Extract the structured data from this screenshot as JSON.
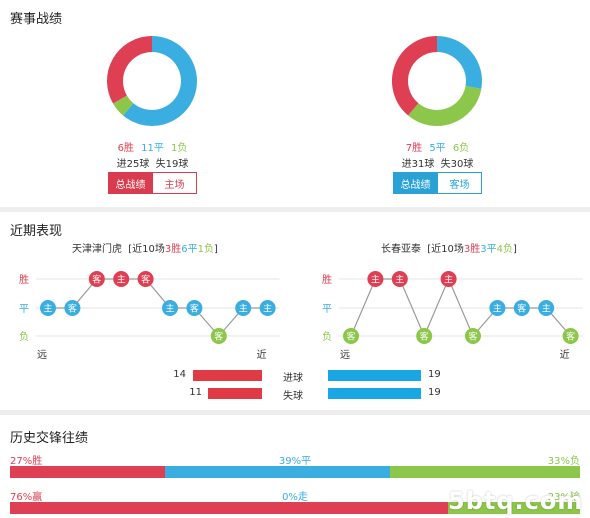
{
  "colors": {
    "win": "#de3f52",
    "draw": "#3aaee0",
    "loss": "#8cc64a",
    "bar_red": "#e03a44",
    "bar_blue": "#1aa6e4"
  },
  "record": {
    "title": "赛事战绩",
    "home": {
      "w": "6胜",
      "d": "11平",
      "l": "1负",
      "goals_for": "进25球",
      "goals_against": "失19球",
      "tab_active": "总战绩",
      "tab_inactive": "主场",
      "donut": {
        "win": 6,
        "draw": 11,
        "loss": 1
      }
    },
    "away": {
      "w": "7胜",
      "d": "5平",
      "l": "6负",
      "goals_for": "进31球",
      "goals_against": "失30球",
      "tab_active": "总战绩",
      "tab_inactive": "客场",
      "donut": {
        "win": 7,
        "draw": 5,
        "loss": 6
      }
    }
  },
  "recent": {
    "title": "近期表现",
    "row_labels": {
      "win": "胜",
      "draw": "平",
      "loss": "负"
    },
    "far": "远",
    "near": "近",
    "home": {
      "name": "天津津门虎",
      "summary_pre": "[近10场",
      "w": "3胜",
      "d": "6平",
      "l": "1负",
      "summary_post": "]",
      "games": [
        {
          "r": "D",
          "v": "主"
        },
        {
          "r": "D",
          "v": "客"
        },
        {
          "r": "W",
          "v": "客"
        },
        {
          "r": "W",
          "v": "主"
        },
        {
          "r": "W",
          "v": "客"
        },
        {
          "r": "D",
          "v": "主"
        },
        {
          "r": "D",
          "v": "客"
        },
        {
          "r": "L",
          "v": "客"
        },
        {
          "r": "D",
          "v": "主"
        },
        {
          "r": "D",
          "v": "主"
        }
      ]
    },
    "away": {
      "name": "长春亚泰",
      "summary_pre": "[近10场",
      "w": "3胜",
      "d": "3平",
      "l": "4负",
      "summary_post": "]",
      "games": [
        {
          "r": "L",
          "v": "客"
        },
        {
          "r": "W",
          "v": "主"
        },
        {
          "r": "W",
          "v": "主"
        },
        {
          "r": "L",
          "v": "客"
        },
        {
          "r": "W",
          "v": "主"
        },
        {
          "r": "L",
          "v": "客"
        },
        {
          "r": "D",
          "v": "主"
        },
        {
          "r": "D",
          "v": "客"
        },
        {
          "r": "D",
          "v": "主"
        },
        {
          "r": "L",
          "v": "客"
        }
      ]
    },
    "compare": {
      "goals_label": "进球",
      "conceded_label": "失球",
      "home_goals": 14,
      "home_conceded": 11,
      "away_goals": 19,
      "away_conceded": 19
    }
  },
  "history": {
    "title": "历史交锋往绩",
    "row1": {
      "left": "27%胜",
      "mid": "39%平",
      "right": "33%负",
      "win_pct": 27,
      "draw_pct": 39,
      "loss_pct": 33
    },
    "row2": {
      "left": "76%赢",
      "mid": "0%走",
      "right": "23%输",
      "win_pct": 76,
      "draw_pct": 0,
      "loss_pct": 23
    }
  },
  "watermark": "5btq.com"
}
